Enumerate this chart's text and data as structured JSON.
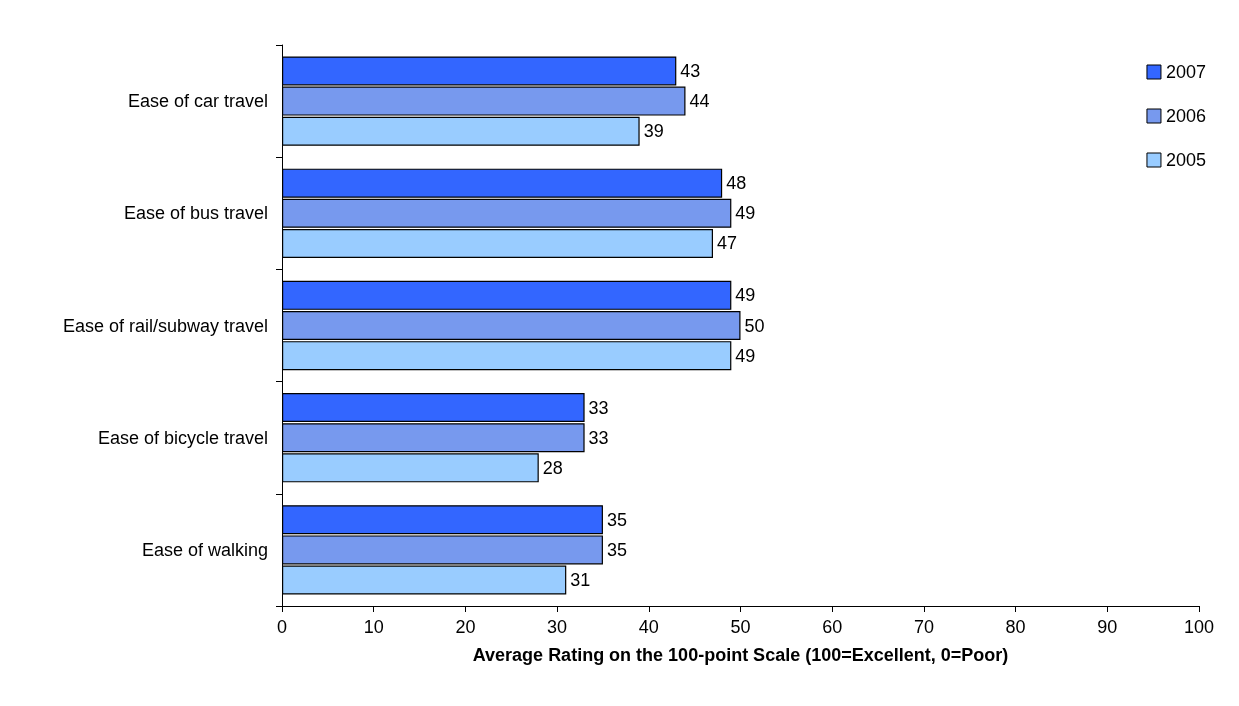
{
  "chart_data": {
    "type": "bar",
    "orientation": "horizontal",
    "categories": [
      "Ease of car travel",
      "Ease of bus travel",
      "Ease of rail/subway travel",
      "Ease of bicycle travel",
      "Ease of walking"
    ],
    "series": [
      {
        "name": "2007",
        "color": "#3366ff",
        "values": [
          43,
          48,
          49,
          33,
          35
        ]
      },
      {
        "name": "2006",
        "color": "#7799ee",
        "values": [
          44,
          49,
          50,
          33,
          35
        ]
      },
      {
        "name": "2005",
        "color": "#99ccff",
        "values": [
          39,
          47,
          49,
          28,
          31
        ]
      }
    ],
    "xlabel": "Average Rating on the 100-point Scale (100=Excellent, 0=Poor)",
    "xlim": [
      0,
      100
    ],
    "xticks": [
      0,
      10,
      20,
      30,
      40,
      50,
      60,
      70,
      80,
      90,
      100
    ],
    "data_labels": true,
    "legend": "top right",
    "grid": false
  }
}
